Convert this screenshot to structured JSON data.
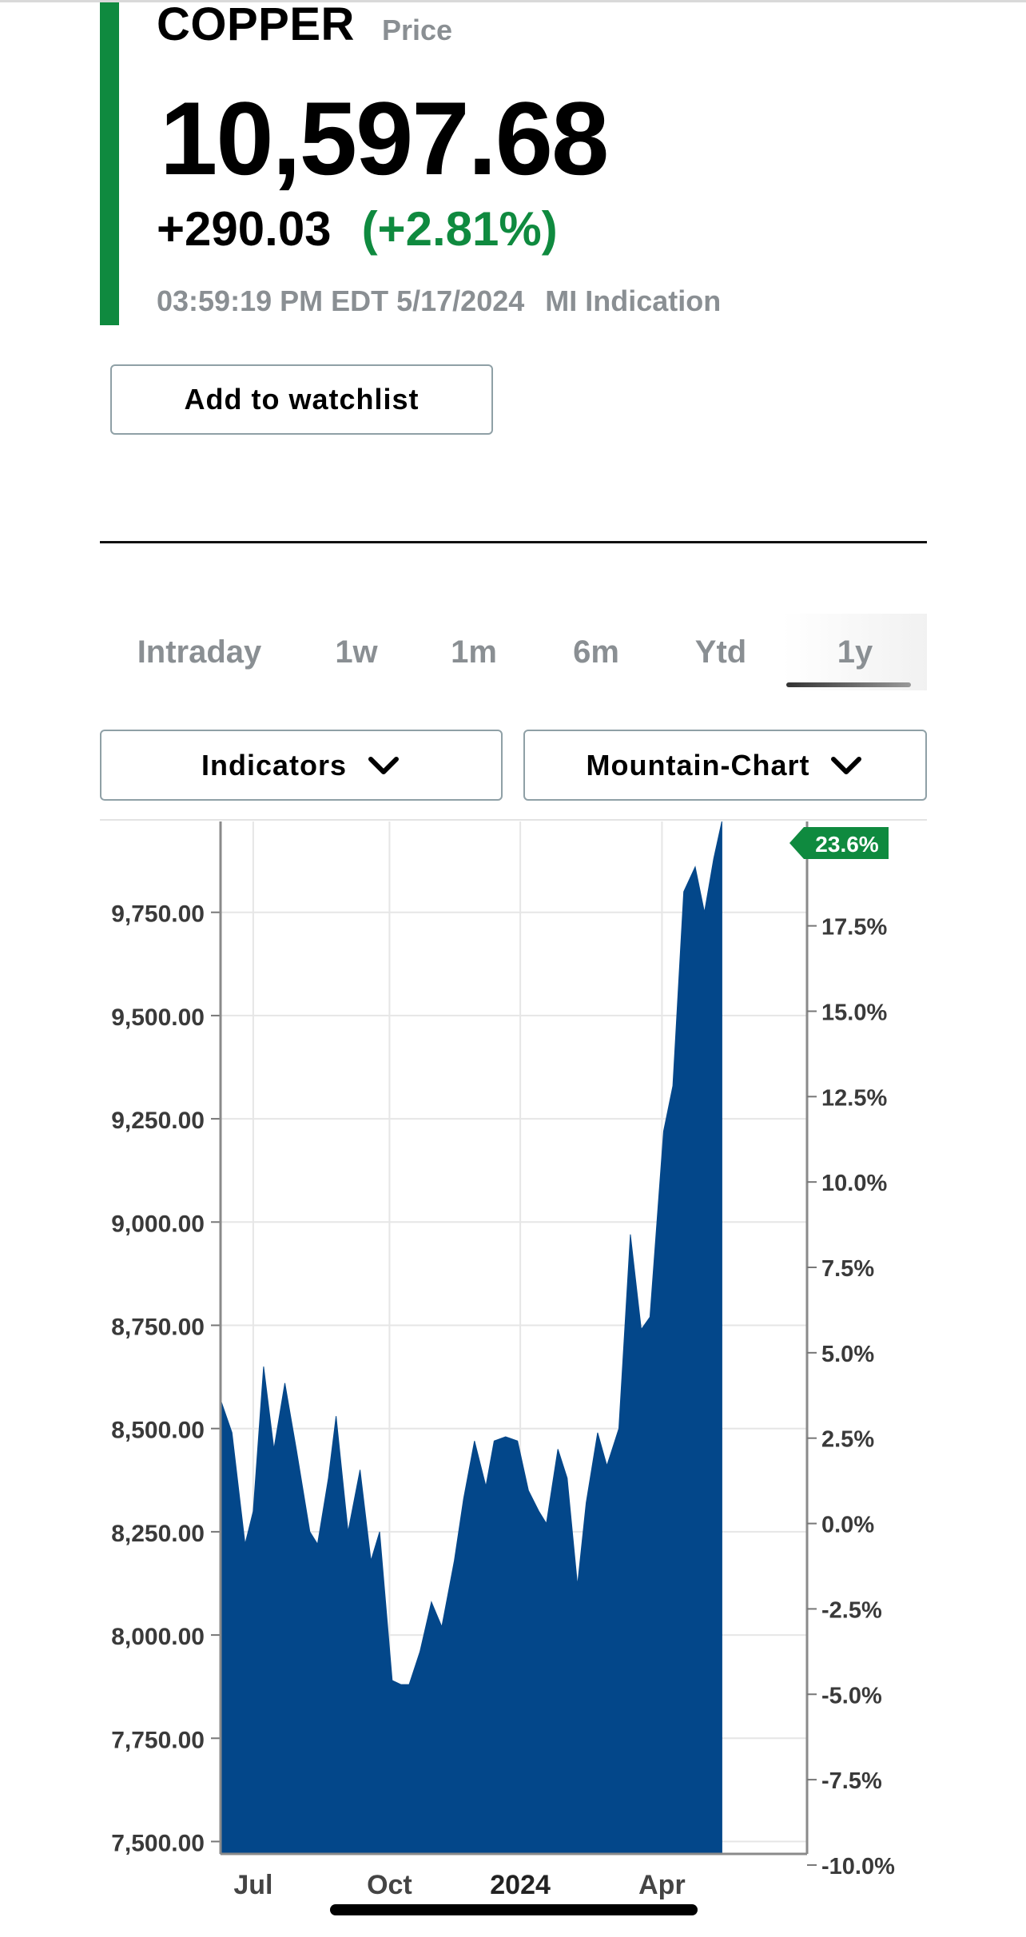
{
  "header": {
    "symbol": "COPPER",
    "symbol_sub": "Price",
    "price": "10,597.68",
    "change": "+290.03",
    "change_pct": "(+2.81%)",
    "timestamp": "03:59:19 PM EDT 5/17/2024",
    "source_label": "MI Indication",
    "accent_color": "#0f8a3f"
  },
  "actions": {
    "watchlist_label": "Add to watchlist"
  },
  "range_tabs": [
    {
      "label": "Intraday",
      "active": false
    },
    {
      "label": "1w",
      "active": false
    },
    {
      "label": "1m",
      "active": false
    },
    {
      "label": "6m",
      "active": false
    },
    {
      "label": "Ytd",
      "active": false
    },
    {
      "label": "1y",
      "active": true
    }
  ],
  "controls": {
    "indicators_label": "Indicators",
    "chart_type_label": "Mountain-Chart",
    "dropdown_icon": "chevron-down-icon"
  },
  "chart_data": {
    "type": "area",
    "fill_color": "#03478a",
    "y_left_ticks": [
      "7,500.00",
      "7,750.00",
      "8,000.00",
      "8,250.00",
      "8,500.00",
      "8,750.00",
      "9,000.00",
      "9,250.00",
      "9,500.00",
      "9,750.00"
    ],
    "y_left_values": [
      7500,
      7750,
      8000,
      8250,
      8500,
      8750,
      9000,
      9250,
      9500,
      9750
    ],
    "y_right_ticks": [
      "-10.0%",
      "-7.5%",
      "-5.0%",
      "-2.5%",
      "0.0%",
      "2.5%",
      "5.0%",
      "7.5%",
      "10.0%",
      "12.5%",
      "15.0%",
      "17.5%"
    ],
    "y_right_values": [
      -10,
      -7.5,
      -5,
      -2.5,
      0,
      2.5,
      5,
      7.5,
      10,
      12.5,
      15,
      17.5
    ],
    "x_ticks": [
      {
        "label": "Jul",
        "t": 0.06,
        "bold": false
      },
      {
        "label": "Oct",
        "t": 0.31,
        "bold": false
      },
      {
        "label": "2024",
        "t": 0.55,
        "bold": true
      },
      {
        "label": "Apr",
        "t": 0.81,
        "bold": false
      }
    ],
    "ylim": [
      7470,
      9970
    ],
    "current_pct_badge": "23.6%",
    "series": [
      {
        "values": [
          [
            0.0,
            8570
          ],
          [
            0.021,
            8490
          ],
          [
            0.045,
            8220
          ],
          [
            0.06,
            8300
          ],
          [
            0.079,
            8650
          ],
          [
            0.098,
            8450
          ],
          [
            0.118,
            8610
          ],
          [
            0.139,
            8450
          ],
          [
            0.164,
            8250
          ],
          [
            0.178,
            8220
          ],
          [
            0.198,
            8380
          ],
          [
            0.212,
            8530
          ],
          [
            0.234,
            8250
          ],
          [
            0.256,
            8400
          ],
          [
            0.276,
            8180
          ],
          [
            0.292,
            8250
          ],
          [
            0.315,
            7890
          ],
          [
            0.331,
            7880
          ],
          [
            0.346,
            7880
          ],
          [
            0.366,
            7960
          ],
          [
            0.387,
            8080
          ],
          [
            0.406,
            8020
          ],
          [
            0.429,
            8180
          ],
          [
            0.446,
            8330
          ],
          [
            0.466,
            8470
          ],
          [
            0.487,
            8360
          ],
          [
            0.502,
            8470
          ],
          [
            0.523,
            8480
          ],
          [
            0.545,
            8470
          ],
          [
            0.565,
            8350
          ],
          [
            0.584,
            8300
          ],
          [
            0.598,
            8270
          ],
          [
            0.619,
            8450
          ],
          [
            0.636,
            8380
          ],
          [
            0.655,
            8120
          ],
          [
            0.671,
            8320
          ],
          [
            0.692,
            8490
          ],
          [
            0.709,
            8410
          ],
          [
            0.731,
            8500
          ],
          [
            0.752,
            8970
          ],
          [
            0.772,
            8740
          ],
          [
            0.788,
            8770
          ],
          [
            0.813,
            9220
          ],
          [
            0.83,
            9330
          ],
          [
            0.85,
            9800
          ],
          [
            0.871,
            9860
          ],
          [
            0.888,
            9750
          ],
          [
            0.905,
            9880
          ],
          [
            0.92,
            9970
          ]
        ]
      }
    ]
  }
}
